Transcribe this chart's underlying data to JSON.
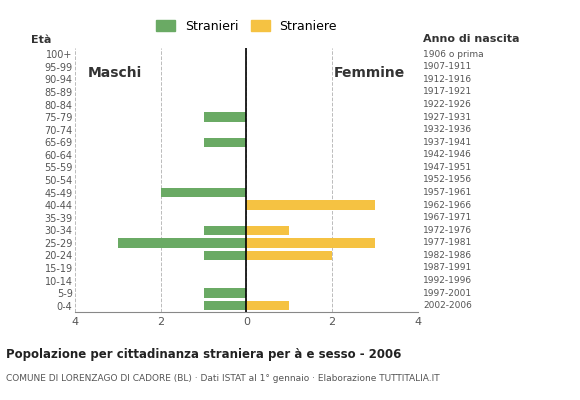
{
  "age_groups": [
    "0-4",
    "5-9",
    "10-14",
    "15-19",
    "20-24",
    "25-29",
    "30-34",
    "35-39",
    "40-44",
    "45-49",
    "50-54",
    "55-59",
    "60-64",
    "65-69",
    "70-74",
    "75-79",
    "80-84",
    "85-89",
    "90-94",
    "95-99",
    "100+"
  ],
  "birth_years": [
    "2002-2006",
    "1997-2001",
    "1992-1996",
    "1987-1991",
    "1982-1986",
    "1977-1981",
    "1972-1976",
    "1967-1971",
    "1962-1966",
    "1957-1961",
    "1952-1956",
    "1947-1951",
    "1942-1946",
    "1937-1941",
    "1932-1936",
    "1927-1931",
    "1922-1926",
    "1917-1921",
    "1912-1916",
    "1907-1911",
    "1906 o prima"
  ],
  "males": [
    1,
    1,
    0,
    0,
    1,
    3,
    1,
    0,
    0,
    2,
    0,
    0,
    0,
    1,
    0,
    1,
    0,
    0,
    0,
    0,
    0
  ],
  "females": [
    1,
    0,
    0,
    0,
    2,
    3,
    1,
    0,
    3,
    0,
    0,
    0,
    0,
    0,
    0,
    0,
    0,
    0,
    0,
    0,
    0
  ],
  "male_color": "#6aaa64",
  "female_color": "#f5c242",
  "grid_color": "#bbbbbb",
  "title": "Popolazione per cittadinanza straniera per à e sesso - 2006",
  "subtitle": "COMUNE DI LORENZAGO DI CADORE (BL) · Dati ISTAT al 1° gennaio · Elaborazione TUTTITALIA.IT",
  "label_eta": "Età",
  "label_anno": "Anno di nascita",
  "label_maschi": "Maschi",
  "label_femmine": "Femmine",
  "legend_males": "Stranieri",
  "legend_females": "Straniere",
  "xlim": 4
}
